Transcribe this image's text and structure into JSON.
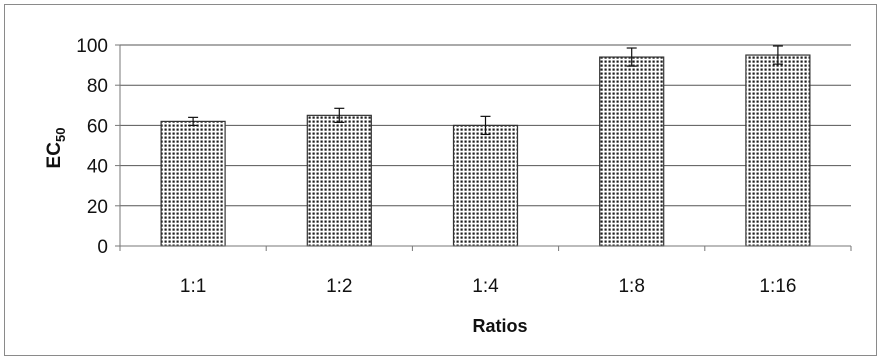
{
  "chart_data": {
    "type": "bar",
    "categories": [
      "1:1",
      "1:2",
      "1:4",
      "1:8",
      "1:16"
    ],
    "values": [
      62,
      65,
      60,
      94,
      95
    ],
    "error": [
      2,
      3.5,
      4.5,
      4.5,
      4.5
    ],
    "xlabel": "Ratios",
    "ylabel": {
      "main": "EC",
      "sub": "50"
    },
    "ylim": [
      0,
      100
    ],
    "yticks": [
      "0",
      "20",
      "40",
      "60",
      "80",
      "100"
    ],
    "grid": true,
    "legend": "none"
  },
  "colors": {
    "bar_dot": "#1e1e1e",
    "bar_fill": "#ffffff",
    "bar_stroke": "#333333",
    "grid": "#555555",
    "axis": "#777777"
  }
}
